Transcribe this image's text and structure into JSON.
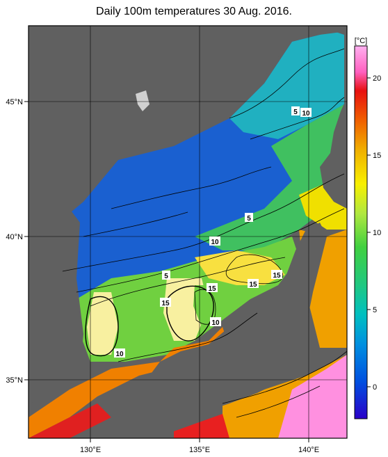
{
  "title": "Daily 100m temperatures 30 Aug. 2016.",
  "colorbar": {
    "unit": "[°C]",
    "ticks": [
      "20",
      "15",
      "10",
      "5",
      "0"
    ],
    "colors": [
      "#2a00c8",
      "#0060e0",
      "#00a0d0",
      "#00c8a0",
      "#30d060",
      "#a0e040",
      "#f0f000",
      "#f0b000",
      "#f06000",
      "#e01010",
      "#ff80e0"
    ]
  },
  "axes": {
    "lon_labels": [
      "130°E",
      "135°E",
      "140°E"
    ],
    "lat_labels": [
      "45°N",
      "40°N",
      "35°N"
    ]
  },
  "contour_labels": [
    "5",
    "10",
    "10",
    "5",
    "5",
    "15",
    "15",
    "15",
    "15",
    "10",
    "10"
  ]
}
